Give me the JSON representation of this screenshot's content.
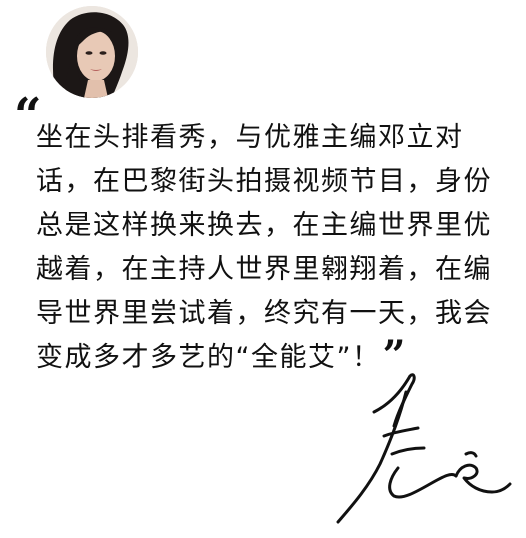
{
  "quote": {
    "open_mark": "“",
    "text": "坐在头排看秀，与优雅主编邓立对话，在巴黎街头拍摄视频节目，身份总是这样换来换去，在主编世界里优越着，在主持人世界里翱翔着，在编导世界里尝试着，终究有一天，我会变成多才多艺的“全能艾”！",
    "close_mark": "”"
  },
  "avatar": {
    "icon": "portrait-photo"
  },
  "signature": {
    "icon": "handwritten-signature",
    "color": "#111111"
  }
}
